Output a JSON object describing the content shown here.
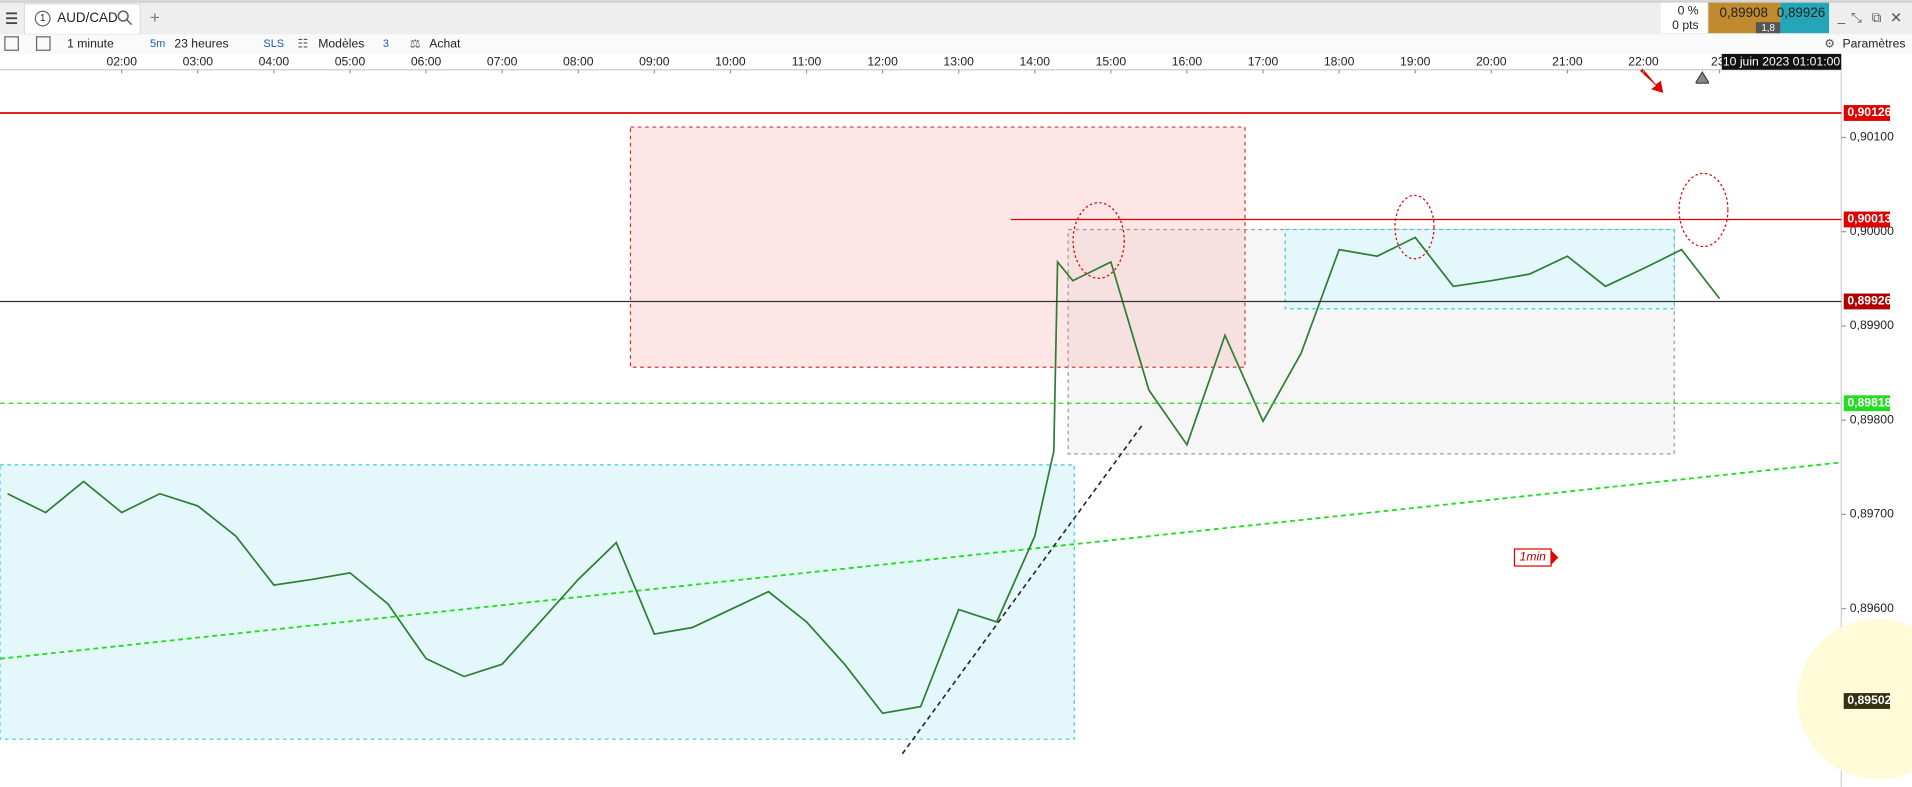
{
  "toolbar": {
    "tab_number": "1",
    "symbol": "AUD/CAD",
    "interval": "1 minute",
    "interval_short": "5m",
    "period": "23 heures",
    "sls": "SLS",
    "models": "Modèles",
    "models_count": "3",
    "buy": "Achat",
    "settings": "Paramètres",
    "change_pct": "0 %",
    "change_pts": "0 pts",
    "bid": "0,89908",
    "ask": "0,89926",
    "spread": "1,8"
  },
  "chart_data": {
    "type": "line",
    "color": "#2e7d32",
    "x": [
      0.5,
      1.0,
      1.5,
      2.0,
      2.5,
      3.0,
      3.5,
      4.0,
      4.5,
      5.0,
      5.5,
      6.0,
      6.5,
      7.0,
      7.5,
      8.0,
      8.5,
      9.0,
      9.5,
      10.0,
      10.5,
      11.0,
      11.5,
      12.0,
      12.5,
      13.0,
      13.5,
      14.0,
      14.25,
      14.3,
      14.5,
      15.0,
      15.5,
      16.0,
      16.5,
      17.0,
      17.5,
      18.0,
      18.5,
      19.0,
      19.5,
      20.0,
      20.5,
      21.0,
      21.5,
      22.0,
      22.5,
      23.0
    ],
    "values": [
      0.89722,
      0.89702,
      0.89735,
      0.89702,
      0.89722,
      0.89709,
      0.89677,
      0.89625,
      0.89631,
      0.89638,
      0.89605,
      0.89547,
      0.89528,
      0.89541,
      0.89586,
      0.89631,
      0.8967,
      0.89573,
      0.8958,
      0.89599,
      0.89618,
      0.89586,
      0.89541,
      0.89489,
      0.89496,
      0.89599,
      0.89586,
      0.89677,
      0.89767,
      0.89968,
      0.89948,
      0.89968,
      0.89832,
      0.89774,
      0.8989,
      0.89799,
      0.89871,
      0.89981,
      0.89974,
      0.89994,
      0.89942,
      0.89948,
      0.89955,
      0.89974,
      0.89942,
      0.89961,
      0.89981,
      0.89929
    ],
    "xlim": [
      0.4,
      24.6
    ],
    "ylim": [
      0.89411,
      0.90168
    ],
    "xticks": [
      {
        "value": 2,
        "label": "02:00"
      },
      {
        "value": 3,
        "label": "03:00"
      },
      {
        "value": 4,
        "label": "04:00"
      },
      {
        "value": 5,
        "label": "05:00"
      },
      {
        "value": 6,
        "label": "06:00"
      },
      {
        "value": 7,
        "label": "07:00"
      },
      {
        "value": 8,
        "label": "08:00"
      },
      {
        "value": 9,
        "label": "09:00"
      },
      {
        "value": 10,
        "label": "10:00"
      },
      {
        "value": 11,
        "label": "11:00"
      },
      {
        "value": 12,
        "label": "12:00"
      },
      {
        "value": 13,
        "label": "13:00"
      },
      {
        "value": 14,
        "label": "14:00"
      },
      {
        "value": 15,
        "label": "15:00"
      },
      {
        "value": 16,
        "label": "16:00"
      },
      {
        "value": 17,
        "label": "17:00"
      },
      {
        "value": 18,
        "label": "18:00"
      },
      {
        "value": 19,
        "label": "19:00"
      },
      {
        "value": 20,
        "label": "20:00"
      },
      {
        "value": 21,
        "label": "21:00"
      },
      {
        "value": 22,
        "label": "22:00"
      },
      {
        "value": 23,
        "label": "23:"
      }
    ],
    "yticks": [
      {
        "value": 0.901,
        "label": "0,90100"
      },
      {
        "value": 0.9,
        "label": "0,90000"
      },
      {
        "value": 0.899,
        "label": "0,89900"
      },
      {
        "value": 0.898,
        "label": "0,89800"
      },
      {
        "value": 0.897,
        "label": "0,89700"
      },
      {
        "value": 0.896,
        "label": "0,89600"
      }
    ],
    "cursor_label": "10 juin 2023 01:01:00",
    "annotation": "1min",
    "price_levels": [
      {
        "value": 0.90126,
        "label": "0,90126",
        "color": "#e00000"
      },
      {
        "value": 0.90013,
        "label": "0,90013",
        "color": "#e00000"
      },
      {
        "value": 0.89926,
        "label": "0,89926",
        "color": "#b00000"
      },
      {
        "value": 0.89818,
        "label": "0,89818",
        "color": "#22dd22"
      },
      {
        "value": 0.89502,
        "label": "0,89502",
        "color": "#333311"
      }
    ]
  }
}
